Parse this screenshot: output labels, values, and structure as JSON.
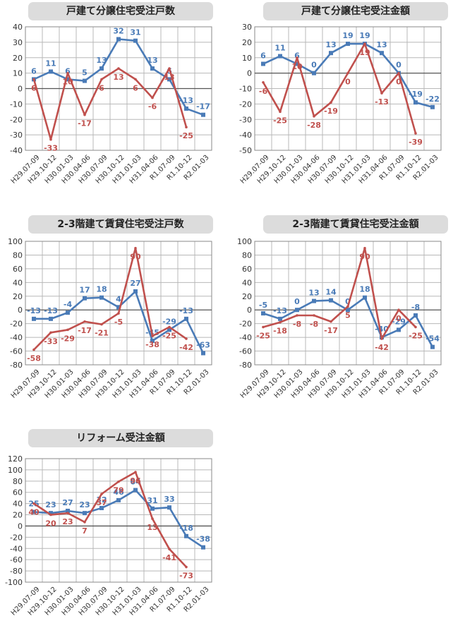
{
  "colors": {
    "blue": "#4a7bb7",
    "red": "#c0504d",
    "grid": "#b8b8b8",
    "frame": "#8a8a8a",
    "zero": "#555555"
  },
  "chart_data": [
    {
      "type": "line",
      "title": "戸建て分譲住宅受注戸数",
      "categories": [
        "H29.07-09",
        "H29.10-12",
        "H30.01-03",
        "H30.04-06",
        "H30.07-09",
        "H30.10-12",
        "H31.01-03",
        "H31.04-06",
        "R1.07-09",
        "R1.10-12",
        "R2.01-03"
      ],
      "yticks": [
        40,
        30,
        20,
        10,
        0,
        -10,
        -20,
        -30,
        -40
      ],
      "ylim": [
        -40,
        40
      ],
      "grid": true,
      "series": [
        {
          "color": "blue",
          "values": [
            6,
            11,
            6,
            5,
            13,
            32,
            31,
            13,
            6,
            -13,
            -17
          ],
          "labels": [
            "6",
            "11",
            "6",
            "5",
            "13",
            "32",
            "31",
            "13",
            "6",
            "-13",
            "-17"
          ]
        },
        {
          "color": "red",
          "values": [
            6,
            -33,
            10,
            -17,
            6,
            13,
            6,
            -6,
            13,
            -25,
            null
          ],
          "labels": [
            "6",
            "-33",
            "10",
            "-17",
            "6",
            "13",
            "6",
            "-6",
            "13",
            "-25",
            ""
          ]
        }
      ]
    },
    {
      "type": "line",
      "title": "戸建て分譲住宅受注金額",
      "categories": [
        "H29.07-09",
        "H29.10-12",
        "H30.01-03",
        "H30.04-06",
        "H30.07-09",
        "H30.10-12",
        "H31.01-03",
        "H31.04-06",
        "R1.07-09",
        "R1.10-12",
        "R2.01-03"
      ],
      "yticks": [
        30,
        20,
        10,
        0,
        -10,
        -20,
        -30,
        -40,
        -50
      ],
      "ylim": [
        -50,
        30
      ],
      "grid": true,
      "series": [
        {
          "color": "blue",
          "values": [
            6,
            11,
            6,
            0,
            13,
            19,
            19,
            13,
            0,
            -19,
            -22
          ],
          "labels": [
            "6",
            "11",
            "6",
            "0",
            "13",
            "19",
            "19",
            "13",
            "0",
            "-19",
            "-22"
          ]
        },
        {
          "color": "red",
          "values": [
            -6,
            -25,
            10,
            -28,
            -19,
            0,
            19,
            -13,
            0,
            -39,
            null
          ],
          "labels": [
            "-6",
            "-25",
            "10",
            "-28",
            "-19",
            "0",
            "19",
            "-13",
            "0",
            "-39",
            ""
          ]
        }
      ]
    },
    {
      "type": "line",
      "title": "2-3階建て賃貸住宅受注戸数",
      "categories": [
        "H29.07-09",
        "H29.10-12",
        "H30.01-03",
        "H30.04-06",
        "H30.07-09",
        "H30.10-12",
        "H31.01-03",
        "H31.04-06",
        "R1.07-09",
        "R1.10-12",
        "R2.01-03"
      ],
      "yticks": [
        100,
        80,
        60,
        40,
        20,
        0,
        -20,
        -40,
        -60,
        -80
      ],
      "ylim": [
        -80,
        100
      ],
      "grid": true,
      "series": [
        {
          "color": "blue",
          "values": [
            -13,
            -13,
            -4,
            17,
            18,
            4,
            27,
            -45,
            -29,
            -13,
            -63
          ],
          "labels": [
            "-13",
            "-13",
            "-4",
            "17",
            "18",
            "4",
            "27",
            "-45",
            "-29",
            "-13",
            "-63"
          ]
        },
        {
          "color": "red",
          "values": [
            -58,
            -33,
            -29,
            -17,
            -21,
            -5,
            90,
            -38,
            -25,
            -42,
            null
          ],
          "labels": [
            "-58",
            "-33",
            "-29",
            "-17",
            "-21",
            "-5",
            "90",
            "-38",
            "-25",
            "-42",
            ""
          ]
        }
      ]
    },
    {
      "type": "line",
      "title": "2-3階建て賃貸住宅受注金額",
      "categories": [
        "H29.07-09",
        "H29.10-12",
        "H30.01-03",
        "H30.04-06",
        "H30.07-09",
        "H30.10-12",
        "H31.01-03",
        "H31.04-06",
        "R1.07-09",
        "R1.10-12",
        "R2.01-03"
      ],
      "yticks": [
        100,
        80,
        60,
        40,
        20,
        0,
        -20,
        -40,
        -60,
        -80
      ],
      "ylim": [
        -80,
        100
      ],
      "grid": true,
      "series": [
        {
          "color": "blue",
          "values": [
            -5,
            -13,
            0,
            13,
            14,
            0,
            18,
            -40,
            -29,
            -8,
            -54
          ],
          "labels": [
            "-5",
            "-13",
            "0",
            "13",
            "14",
            "0",
            "18",
            "-40",
            "-29",
            "-8",
            "-54"
          ]
        },
        {
          "color": "red",
          "values": [
            -25,
            -18,
            -8,
            -8,
            -17,
            5,
            90,
            -42,
            0,
            -25,
            null
          ],
          "labels": [
            "-25",
            "-18",
            "-8",
            "-8",
            "-17",
            "5",
            "90",
            "-42",
            "0",
            "-25",
            ""
          ]
        }
      ]
    },
    {
      "type": "line",
      "title": "リフォーム受注金額",
      "categories": [
        "H29.07-09",
        "H29.10-12",
        "H30.01-03",
        "H30.04-06",
        "H30.07-09",
        "H30.10-12",
        "H31.01-03",
        "H31.04-06",
        "R1.07-09",
        "R1.10-12",
        "R2.01-03"
      ],
      "yticks": [
        120,
        100,
        80,
        60,
        40,
        20,
        0,
        -20,
        -40,
        -60,
        -80,
        -100
      ],
      "ylim": [
        -100,
        120
      ],
      "grid": true,
      "series": [
        {
          "color": "blue",
          "values": [
            25,
            23,
            27,
            23,
            32,
            46,
            64,
            31,
            33,
            -18,
            -38
          ],
          "labels": [
            "25",
            "23",
            "27",
            "23",
            "32",
            "46",
            "64",
            "31",
            "33",
            "-18",
            "-38"
          ]
        },
        {
          "color": "red",
          "values": [
            40,
            20,
            23,
            7,
            57,
            79,
            96,
            13,
            -41,
            -73,
            null
          ],
          "labels": [
            "40",
            "20",
            "23",
            "7",
            "57",
            "79",
            "96",
            "13",
            "-41",
            "-73",
            ""
          ]
        }
      ]
    }
  ]
}
